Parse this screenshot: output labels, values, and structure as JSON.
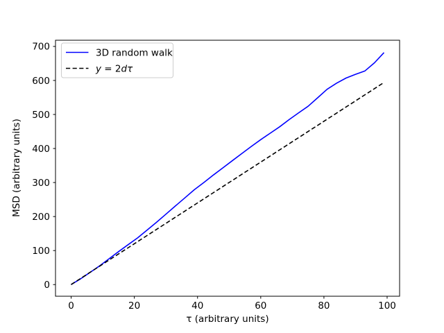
{
  "figure": {
    "background": "#ffffff",
    "frame_color": "#000000"
  },
  "chart_data": {
    "type": "line",
    "title": "",
    "xlabel": "τ (arbitrary units)",
    "ylabel": "MSD (arbitrary units)",
    "xlim": [
      -4.95,
      103.95
    ],
    "ylim": [
      -34.2,
      718.2
    ],
    "xticks": [
      0,
      20,
      40,
      60,
      80,
      100
    ],
    "yticks": [
      0,
      100,
      200,
      300,
      400,
      500,
      600,
      700
    ],
    "grid": false,
    "legend": {
      "position": "upper left",
      "frame": true,
      "frame_color": "#cccccc"
    },
    "series": [
      {
        "name": "3D random walk",
        "color": "#0000ff",
        "style": "solid",
        "width": 1.6,
        "math_label": false,
        "x": [
          0,
          3,
          6,
          9,
          12,
          15,
          18,
          21,
          24,
          27,
          30,
          33,
          36,
          39,
          42,
          45,
          48,
          51,
          54,
          57,
          60,
          63,
          66,
          69,
          72,
          75,
          78,
          81,
          84,
          87,
          90,
          93,
          96,
          99
        ],
        "y": [
          0,
          17,
          36,
          55,
          76,
          97,
          117,
          137,
          160,
          183,
          207,
          231,
          255,
          279,
          300,
          322,
          343,
          364,
          385,
          406,
          426,
          445,
          464,
          485,
          505,
          524,
          549,
          574,
          592,
          607,
          618,
          628,
          652,
          682
        ]
      },
      {
        "name": "y = 2dτ",
        "color": "#000000",
        "style": "dashed",
        "width": 1.6,
        "math_label": true,
        "x": [
          0,
          99
        ],
        "y": [
          0,
          594
        ]
      }
    ]
  }
}
